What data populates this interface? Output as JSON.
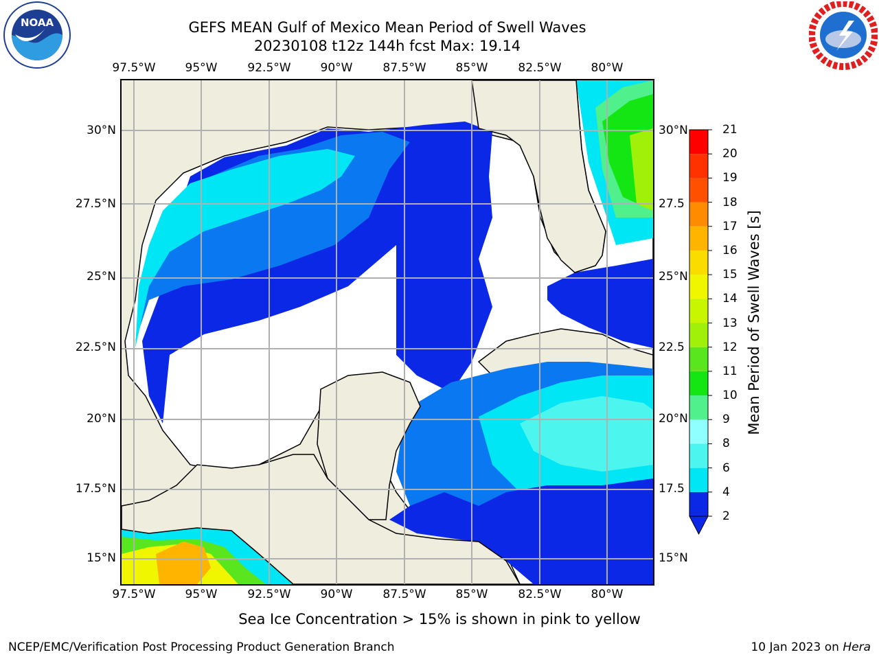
{
  "header": {
    "title_line1": "GEFS MEAN Gulf of Mexico Mean Period of Swell Waves",
    "title_line2": "20230108 t12z 144h fcst   Max: 19.14"
  },
  "logos": {
    "left": {
      "icon": "noaa-logo-icon",
      "text": "NOAA",
      "ring_text": "NATIONAL OCEANIC AND ATMOSPHERIC ADMINISTRATION · U.S. DEPARTMENT OF COMMERCE"
    },
    "right": {
      "icon": "nws-logo-icon",
      "ring_text": "NATIONAL WEATHER SERVICE"
    }
  },
  "map": {
    "lon_labels": [
      "97.5°W",
      "95°W",
      "92.5°W",
      "90°W",
      "87.5°W",
      "85°W",
      "82.5°W",
      "80°W"
    ],
    "lat_labels_left": [
      "30°N",
      "27.5°N",
      "25°N",
      "22.5°N",
      "20°N",
      "17.5°N",
      "15°N"
    ],
    "lat_labels_right": [
      "30°N",
      "27.5",
      "25°N",
      "22.5",
      "20°N",
      "17.5",
      "15°N"
    ],
    "lon_range": [
      -98,
      -78.2
    ],
    "lat_range": [
      14,
      31.6
    ],
    "land_color": "#efedde",
    "grid_color": "#b0b0b0"
  },
  "colorbar": {
    "label": "Mean Period of Swell Waves [s]",
    "tick_labels": [
      "2",
      "4",
      "6",
      "8",
      "9",
      "10",
      "11",
      "12",
      "13",
      "14",
      "15",
      "16",
      "17",
      "18",
      "19",
      "20",
      "21"
    ],
    "colors": [
      "#0a28e6",
      "#0a78f0",
      "#00e6f5",
      "#4df5ef",
      "#8fffff",
      "#50f08c",
      "#14e614",
      "#5ae61e",
      "#a0f00a",
      "#c8f500",
      "#f0f500",
      "#fadc00",
      "#ffb400",
      "#ff8c00",
      "#ff5000",
      "#ff3200",
      "#ff0000"
    ],
    "extend": "min"
  },
  "note": "Sea Ice Concentration > 15% is shown in pink to yellow",
  "footer": {
    "left": "NCEP/EMC/Verification Post Processing Product Generation Branch",
    "right_date": "10 Jan 2023 on ",
    "right_machine": "Hera"
  }
}
